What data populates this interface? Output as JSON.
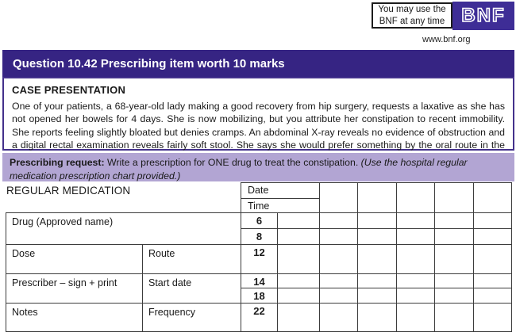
{
  "header": {
    "bnf_note_line1": "You may use the",
    "bnf_note_line2": "BNF at any time",
    "bnf_logo": "BNF",
    "website": "www.bnf.org"
  },
  "question": {
    "title": "Question 10.42 Prescribing item worth 10 marks",
    "case_heading": "CASE PRESENTATION",
    "case_text": "One of your patients, a 68-year-old lady making a good recovery from hip surgery, requests a laxative as she has not opened her bowels for 4 days. She is now mobilizing, but you attribute her constipation to recent immobility. She reports feeling slightly bloated but denies cramps. An abdominal X-ray reveals no evidence of obstruction and a digital rectal examination reveals fairly soft stool. She says she would prefer something by the oral route in the first instance.",
    "prescribing_label": "Prescribing request:",
    "prescribing_text": " Write a prescription for ONE drug to treat the constipation. ",
    "prescribing_note": "(Use the hospital regular medication prescription chart provided.)"
  },
  "chart": {
    "section_title": "REGULAR MEDICATION",
    "date_label": "Date",
    "time_label": "Time",
    "drug_label": "Drug (Approved name)",
    "dose_label": "Dose",
    "route_label": "Route",
    "prescriber_label": "Prescriber – sign + print",
    "start_date_label": "Start date",
    "notes_label": "Notes",
    "frequency_label": "Frequency",
    "times": [
      "6",
      "8",
      "12",
      "14",
      "18",
      "22"
    ]
  },
  "colors": {
    "header_purple": "#362483",
    "border_purple": "#44318c",
    "light_purple": "#b2a5d3",
    "logo_purple": "#3e2d96",
    "grid_line": "#3c3c3c"
  }
}
